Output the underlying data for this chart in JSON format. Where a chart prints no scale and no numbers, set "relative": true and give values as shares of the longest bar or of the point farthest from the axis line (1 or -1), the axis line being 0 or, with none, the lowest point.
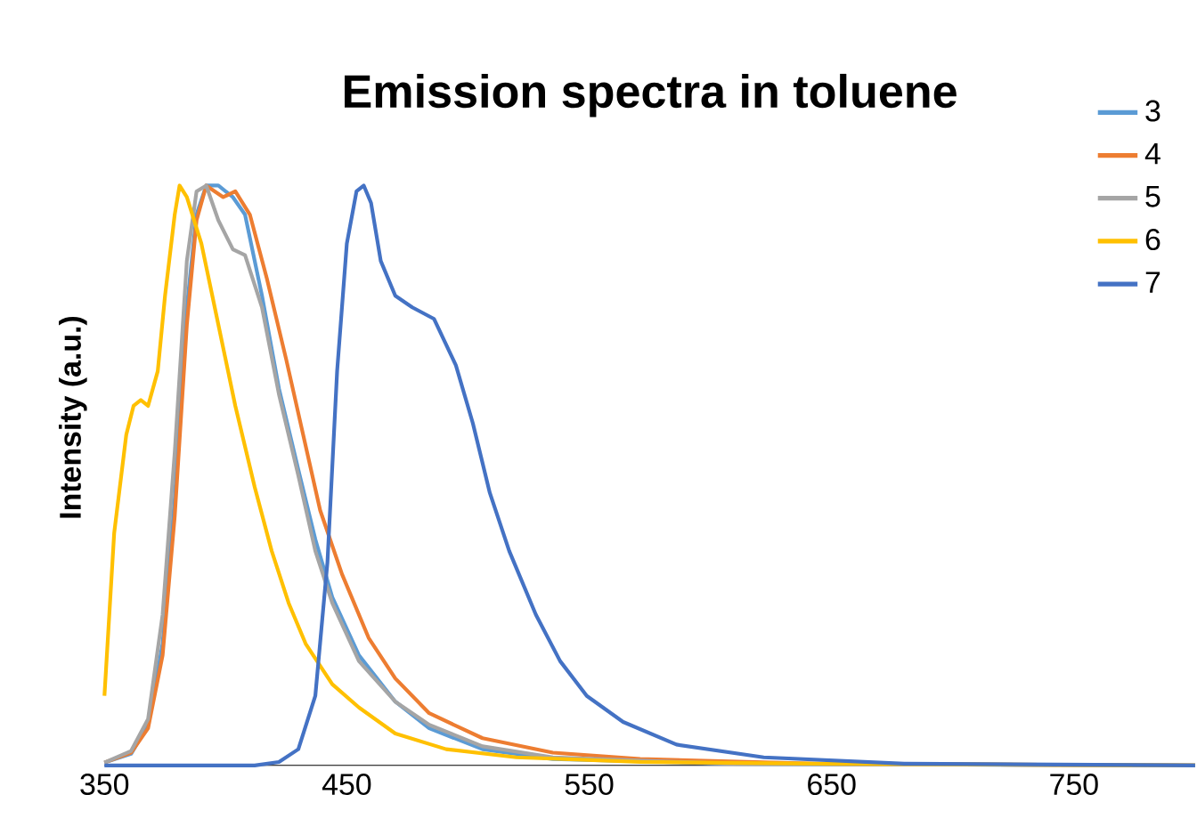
{
  "chart_data": {
    "type": "line",
    "title": "Emission spectra in toluene",
    "ylabel": "Intensity (a.u.)",
    "relative": true,
    "xlim": [
      350,
      800
    ],
    "xticks": [
      350,
      450,
      550,
      650,
      750
    ],
    "legend": "top right",
    "grid": false,
    "marker": "none",
    "line_style": "solid",
    "series": [
      {
        "name": "3",
        "color": "#5B9BD5",
        "x": [
          350,
          361,
          368,
          374,
          379,
          384,
          388,
          392,
          397,
          403,
          408,
          415,
          422,
          430,
          437,
          444,
          455,
          470,
          484,
          506,
          535,
          607,
          800
        ],
        "values": [
          0.005,
          0.02,
          0.07,
          0.21,
          0.46,
          0.79,
          0.95,
          1.0,
          1.0,
          0.98,
          0.95,
          0.81,
          0.65,
          0.51,
          0.39,
          0.29,
          0.19,
          0.11,
          0.064,
          0.028,
          0.011,
          0.003,
          0
        ]
      },
      {
        "name": "4",
        "color": "#ED7D31",
        "x": [
          350,
          361,
          368,
          374,
          379,
          384,
          388,
          392,
          399,
          404,
          410,
          417,
          425,
          432,
          439,
          448,
          459,
          470,
          484,
          506,
          535,
          571,
          643,
          800
        ],
        "values": [
          0.005,
          0.022,
          0.064,
          0.19,
          0.43,
          0.76,
          0.94,
          1.0,
          0.98,
          0.99,
          0.95,
          0.84,
          0.7,
          0.57,
          0.44,
          0.33,
          0.22,
          0.15,
          0.09,
          0.047,
          0.022,
          0.011,
          0.003,
          0
        ]
      },
      {
        "name": "5",
        "color": "#A5A5A5",
        "x": [
          350,
          361,
          368,
          374,
          379,
          384,
          388,
          392,
          397,
          403,
          408,
          415,
          422,
          430,
          437,
          444,
          455,
          470,
          484,
          506,
          535,
          607,
          800
        ],
        "values": [
          0.005,
          0.025,
          0.08,
          0.26,
          0.54,
          0.87,
          0.99,
          1.0,
          0.94,
          0.89,
          0.88,
          0.79,
          0.64,
          0.5,
          0.37,
          0.28,
          0.18,
          0.11,
          0.07,
          0.033,
          0.014,
          0.003,
          0
        ]
      },
      {
        "name": "6",
        "color": "#FFC000",
        "x": [
          350,
          354,
          359,
          362,
          365,
          368,
          372,
          375,
          379,
          381,
          384,
          390,
          397,
          404,
          412,
          419,
          426,
          433,
          444,
          455,
          470,
          491,
          520,
          571,
          643,
          800
        ],
        "values": [
          0.12,
          0.4,
          0.57,
          0.62,
          0.63,
          0.62,
          0.68,
          0.81,
          0.95,
          1.0,
          0.98,
          0.9,
          0.76,
          0.62,
          0.48,
          0.37,
          0.28,
          0.21,
          0.14,
          0.1,
          0.055,
          0.028,
          0.014,
          0.006,
          0.003,
          0
        ]
      },
      {
        "name": "7",
        "color": "#4472C4",
        "x": [
          350,
          412,
          422,
          430,
          437,
          442,
          446,
          450,
          454,
          457,
          460,
          464,
          470,
          477,
          486,
          495,
          502,
          509,
          517,
          528,
          538,
          549,
          564,
          586,
          622,
          680,
          800
        ],
        "values": [
          0,
          0,
          0.006,
          0.028,
          0.12,
          0.35,
          0.68,
          0.9,
          0.99,
          1.0,
          0.97,
          0.87,
          0.81,
          0.79,
          0.77,
          0.69,
          0.59,
          0.47,
          0.37,
          0.26,
          0.18,
          0.12,
          0.075,
          0.036,
          0.014,
          0.003,
          0
        ]
      }
    ]
  }
}
